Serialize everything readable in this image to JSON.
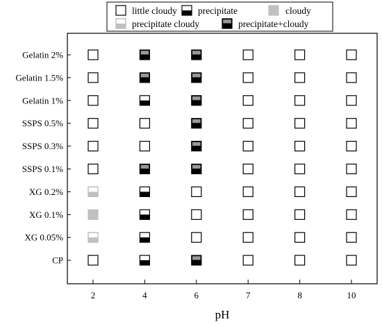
{
  "chart_data": {
    "type": "scatter",
    "xlabel": "pH",
    "ylabel": "",
    "x": [
      2,
      4,
      6,
      7,
      8,
      10
    ],
    "categories": [
      "Gelatin 2%",
      "Gelatin 1.5%",
      "Gelatin 1%",
      "SSPS 0.5%",
      "SSPS 0.3%",
      "SSPS 0.1%",
      "XG 0.2%",
      "XG 0.1%",
      "XG 0.05%",
      "CP"
    ],
    "legend": [
      {
        "key": "L",
        "label": "little cloudy"
      },
      {
        "key": "P",
        "label": "precipitate"
      },
      {
        "key": "C",
        "label": "cloudy"
      },
      {
        "key": "PC",
        "label": "precipitate cloudy"
      },
      {
        "key": "P+C",
        "label": "precipitate+cloudy"
      }
    ],
    "legend_position": "top",
    "grid": false,
    "colors": {
      "precipitate": "#000000",
      "cloudy": "#c0c0c0",
      "precipitate_cloudy_mark": "#989898",
      "outline": "#000000",
      "light_outline": "#b0b0b0"
    },
    "series": [
      {
        "name": "Gelatin 2%",
        "values": [
          "L",
          "P+C",
          "P+C",
          "L",
          "L",
          "L"
        ]
      },
      {
        "name": "Gelatin 1.5%",
        "values": [
          "L",
          "P+C",
          "P+C",
          "L",
          "L",
          "L"
        ]
      },
      {
        "name": "Gelatin 1%",
        "values": [
          "L",
          "P",
          "P+C",
          "L",
          "L",
          "L"
        ]
      },
      {
        "name": "SSPS 0.5%",
        "values": [
          "L",
          "L",
          "P+C",
          "L",
          "L",
          "L"
        ]
      },
      {
        "name": "SSPS 0.3%",
        "values": [
          "L",
          "L",
          "P+C",
          "L",
          "L",
          "L"
        ]
      },
      {
        "name": "SSPS 0.1%",
        "values": [
          "L",
          "P+C",
          "P+C",
          "L",
          "L",
          "L"
        ]
      },
      {
        "name": "XG 0.2%",
        "values": [
          "PC",
          "P",
          "L",
          "L",
          "L",
          "L"
        ]
      },
      {
        "name": "XG 0.1%",
        "values": [
          "C",
          "P",
          "L",
          "L",
          "L",
          "L"
        ]
      },
      {
        "name": "XG 0.05%",
        "values": [
          "PC",
          "P",
          "L",
          "L",
          "L",
          "L"
        ]
      },
      {
        "name": "CP",
        "values": [
          "L",
          "P",
          "P+C",
          "L",
          "L",
          "L"
        ]
      }
    ]
  }
}
